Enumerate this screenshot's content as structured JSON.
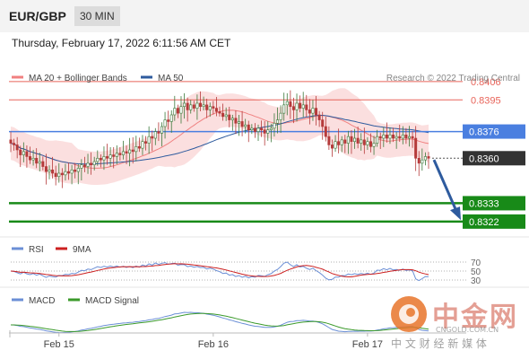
{
  "header": {
    "pair": "EUR/GBP",
    "timeframe": "30 MIN"
  },
  "datetime": "Thursday, February 17, 2022 6:11:56 AM CET",
  "watermark": {
    "main": "中金网",
    "domain": "CNGOLD.COM.CN",
    "sub": "中 文 财 经 新 媒 体"
  },
  "colors": {
    "resistance": "#e8645a",
    "pivot": "#4a7fe0",
    "support": "#188a18",
    "bollinger": "#f7c4c4",
    "ma20": "#f08080",
    "ma50": "#2e5b9e",
    "candle_up": "#3c7a3c",
    "candle_down": "#b53a3a",
    "rsi": "#6b8fd6",
    "rsi_ma": "#cc2020",
    "macd": "#6b8fd6",
    "macd_signal": "#3b9a2b",
    "arrow": "#2e5b9e",
    "price_tag": "#333333"
  },
  "chart_data": [
    {
      "type": "candlestick",
      "legend": [
        {
          "name": "MA 20 + Bollinger Bands",
          "color": "#f08080"
        },
        {
          "name": "MA 50",
          "color": "#2e5b9e"
        }
      ],
      "legend_placement": "top-left",
      "credit": "Research © 2022 Trading Central",
      "ylim": [
        0.8316,
        0.8414
      ],
      "x_ticks": [
        {
          "label": "Feb 15",
          "index": 15
        },
        {
          "label": "Feb 16",
          "index": 63
        },
        {
          "label": "Feb 17",
          "index": 111
        }
      ],
      "levels": [
        {
          "label": "0.8406",
          "value": 0.8406,
          "kind": "resistance"
        },
        {
          "label": "0.8395",
          "value": 0.8395,
          "kind": "resistance"
        },
        {
          "label": "0.8376",
          "value": 0.8376,
          "kind": "pivot"
        },
        {
          "label": "0.8360",
          "value": 0.836,
          "kind": "last"
        },
        {
          "label": "0.8333",
          "value": 0.8333,
          "kind": "support"
        },
        {
          "label": "0.8322",
          "value": 0.8322,
          "kind": "support"
        }
      ],
      "close": [
        0.8369,
        0.8368,
        0.8365,
        0.8362,
        0.8364,
        0.8361,
        0.8359,
        0.836,
        0.8357,
        0.8358,
        0.8355,
        0.8352,
        0.8353,
        0.8351,
        0.8349,
        0.8351,
        0.835,
        0.8352,
        0.8351,
        0.8353,
        0.8352,
        0.8354,
        0.8356,
        0.8355,
        0.8357,
        0.8356,
        0.8358,
        0.836,
        0.8359,
        0.8361,
        0.836,
        0.8362,
        0.8361,
        0.8363,
        0.8362,
        0.8364,
        0.8363,
        0.8365,
        0.8364,
        0.8367,
        0.8366,
        0.837,
        0.8369,
        0.8373,
        0.8372,
        0.8376,
        0.8375,
        0.8379,
        0.8383,
        0.8382,
        0.8386,
        0.839,
        0.8387,
        0.8391,
        0.8393,
        0.8389,
        0.8392,
        0.839,
        0.8393,
        0.8391,
        0.8392,
        0.8389,
        0.8391,
        0.839,
        0.8388,
        0.8387,
        0.8385,
        0.8386,
        0.8383,
        0.8384,
        0.8381,
        0.8382,
        0.8379,
        0.838,
        0.8377,
        0.8378,
        0.8376,
        0.8378,
        0.8377,
        0.8375,
        0.8377,
        0.8378,
        0.8381,
        0.8383,
        0.8387,
        0.8392,
        0.8394,
        0.8391,
        0.8389,
        0.8393,
        0.839,
        0.8392,
        0.8389,
        0.8387,
        0.839,
        0.8386,
        0.8383,
        0.8379,
        0.8373,
        0.8368,
        0.8366,
        0.837,
        0.8368,
        0.8371,
        0.8369,
        0.8373,
        0.837,
        0.8372,
        0.8369,
        0.8371,
        0.8368,
        0.837,
        0.8367,
        0.8369,
        0.8373,
        0.8372,
        0.8374,
        0.8372,
        0.8374,
        0.8372,
        0.8373,
        0.8372,
        0.8374,
        0.8372,
        0.8373,
        0.8372,
        0.836,
        0.8357,
        0.8359,
        0.8361,
        0.836
      ],
      "projection": {
        "from": 0.8359,
        "to": 0.8324
      }
    },
    {
      "type": "line",
      "legend": [
        {
          "name": "RSI",
          "color": "#6b8fd6"
        },
        {
          "name": "9MA",
          "color": "#cc2020"
        }
      ],
      "levels": [
        {
          "label": "70",
          "value": 70
        },
        {
          "label": "50",
          "value": 50
        },
        {
          "label": "30",
          "value": 30
        }
      ],
      "ylim": [
        20,
        80
      ]
    },
    {
      "type": "line",
      "legend": [
        {
          "name": "MACD",
          "color": "#6b8fd6"
        },
        {
          "name": "MACD Signal",
          "color": "#3b9a2b"
        }
      ]
    }
  ]
}
